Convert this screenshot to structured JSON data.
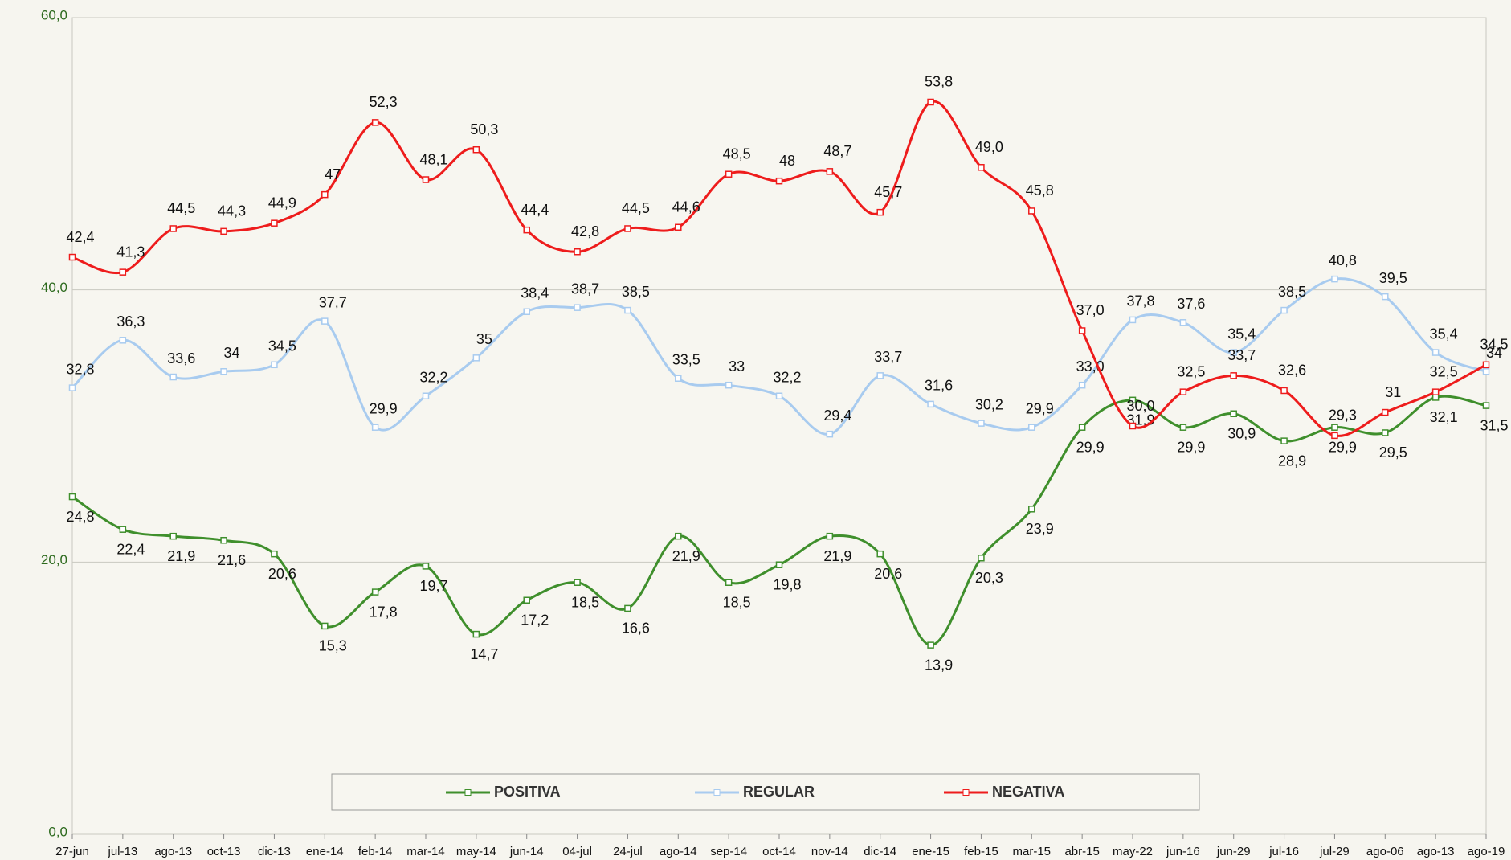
{
  "chart_data": {
    "type": "line",
    "categories": [
      "27-jun",
      "jul-13",
      "ago-13",
      "oct-13",
      "dic-13",
      "ene-14",
      "feb-14",
      "mar-14",
      "may-14",
      "jun-14",
      "04-jul",
      "24-jul",
      "ago-14",
      "sep-14",
      "oct-14",
      "nov-14",
      "dic-14",
      "ene-15",
      "feb-15",
      "mar-15",
      "abr-15",
      "may-22",
      "jun-16",
      "jun-29",
      "jul-16",
      "jul-29",
      "ago-06",
      "ago-13",
      "ago-19"
    ],
    "series": [
      {
        "name": "POSITIVA",
        "color": "#3f8f2c",
        "values": [
          24.8,
          22.4,
          21.9,
          21.6,
          20.6,
          15.3,
          17.8,
          19.7,
          14.7,
          17.2,
          18.5,
          16.6,
          21.9,
          18.5,
          19.8,
          21.9,
          20.6,
          13.9,
          20.3,
          23.9,
          29.9,
          31.9,
          29.9,
          30.9,
          28.9,
          29.9,
          29.5,
          32.1,
          31.5
        ],
        "value_labels": [
          "24,8",
          "22,4",
          "21,9",
          "21,6",
          "20,6",
          "15,3",
          "17,8",
          "19,7",
          "14,7",
          "17,2",
          "18,5",
          "16,6",
          "21,9",
          "18,5",
          "19,8",
          "21,9",
          "20,6",
          "13,9",
          "20,3",
          "23,9",
          "29,9",
          "31,9",
          "29,9",
          "30,9",
          "28,9",
          "29,9",
          "29,5",
          "32,1",
          "31,5"
        ]
      },
      {
        "name": "REGULAR",
        "color": "#a8cbef",
        "values": [
          32.8,
          36.3,
          33.6,
          34,
          34.5,
          37.7,
          29.9,
          32.2,
          35,
          38.4,
          38.7,
          38.5,
          33.5,
          33,
          32.2,
          29.4,
          33.7,
          31.6,
          30.2,
          29.9,
          33.0,
          37.8,
          37.6,
          35.4,
          38.5,
          40.8,
          39.5,
          35.4,
          34
        ],
        "value_labels": [
          "32,8",
          "36,3",
          "33,6",
          "34",
          "34,5",
          "37,7",
          "29,9",
          "32,2",
          "35",
          "38,4",
          "38,7",
          "38,5",
          "33,5",
          "33",
          "32,2",
          "29,4",
          "33,7",
          "31,6",
          "30,2",
          "29,9",
          "33,0",
          "37,8",
          "37,6",
          "35,4",
          "38,5",
          "40,8",
          "39,5",
          "35,4",
          "34"
        ]
      },
      {
        "name": "NEGATIVA",
        "color": "#ee1c1c",
        "values": [
          42.4,
          41.3,
          44.5,
          44.3,
          44.9,
          47,
          52.3,
          48.1,
          50.3,
          44.4,
          42.8,
          44.5,
          44.6,
          48.5,
          48,
          48.7,
          45.7,
          53.8,
          49.0,
          45.8,
          37.0,
          30.0,
          32.5,
          33.7,
          32.6,
          29.3,
          31,
          32.5,
          34.5
        ],
        "value_labels": [
          "42,4",
          "41,3",
          "44,5",
          "44,3",
          "44,9",
          "47",
          "52,3",
          "48,1",
          "50,3",
          "44,4",
          "42,8",
          "44,5",
          "44,6",
          "48,5",
          "48",
          "48,7",
          "45,7",
          "53,8",
          "49,0",
          "45,8",
          "37,0",
          "30,0",
          "32,5",
          "33,7",
          "32,6",
          "29,3",
          "31",
          "32,5",
          "34,5"
        ]
      }
    ],
    "ylim": [
      0,
      60
    ],
    "yticks": [
      {
        "value": 0,
        "label": "0,0"
      },
      {
        "value": 20,
        "label": "20,0"
      },
      {
        "value": 40,
        "label": "40,0"
      },
      {
        "value": 60,
        "label": "60,0"
      }
    ],
    "grid": true,
    "legend": "bottom"
  }
}
